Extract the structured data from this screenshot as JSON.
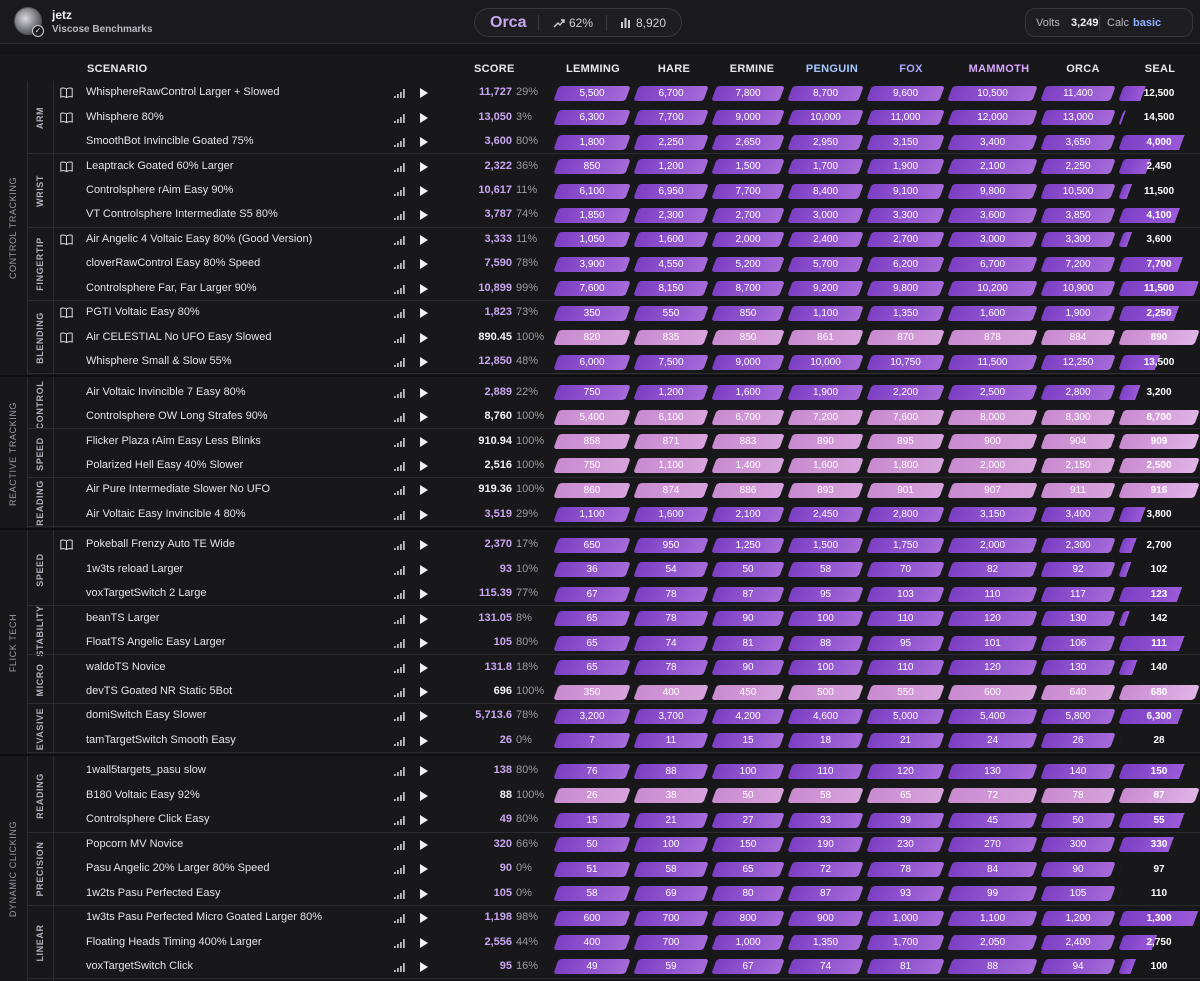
{
  "header": {
    "username": "jetz",
    "benchmark": "Viscose Benchmarks",
    "rank": "Orca",
    "percent": "62%",
    "count": "8,920",
    "volts_label": "Volts",
    "volts_value": "3,249",
    "calc_label": "Calc",
    "calc_value": "basic"
  },
  "columns": {
    "scenario": "SCENARIO",
    "score": "SCORE",
    "ranks": [
      "LEMMING",
      "HARE",
      "ERMINE",
      "PENGUIN",
      "FOX",
      "MAMMOTH",
      "ORCA",
      "SEAL"
    ]
  },
  "colors": {
    "bar_purple": "#7c3fc4",
    "bar_pink": "#c98ad0",
    "accent_text": "#c9a6f0",
    "penguin": "#a6c8ff",
    "fox": "#b0a8ff",
    "mammoth": "#d6a8ff"
  },
  "categories": [
    {
      "name": "CONTROL TRACKING",
      "groups": [
        {
          "name": "ARM",
          "rows": [
            {
              "scenario": "WhisphereRawControl Larger + Slowed",
              "score": "11,727",
              "pct": "29%",
              "book": true,
              "fill": 0.29,
              "thr": [
                "5,500",
                "6,700",
                "7,800",
                "8,700",
                "9,600",
                "10,500",
                "11,400",
                "12,500"
              ]
            },
            {
              "scenario": "Whisphere 80%",
              "score": "13,050",
              "pct": "3%",
              "book": true,
              "fill": 0.03,
              "thr": [
                "6,300",
                "7,700",
                "9,000",
                "10,000",
                "11,000",
                "12,000",
                "13,000",
                "14,500"
              ]
            },
            {
              "scenario": "SmoothBot Invincible Goated 75%",
              "score": "3,600",
              "pct": "80%",
              "book": false,
              "fill": 0.8,
              "thr": [
                "1,800",
                "2,250",
                "2,650",
                "2,950",
                "3,150",
                "3,400",
                "3,650",
                "4,000"
              ]
            }
          ]
        },
        {
          "name": "WRIST",
          "rows": [
            {
              "scenario": "Leaptrack Goated 60% Larger",
              "score": "2,322",
              "pct": "36%",
              "book": true,
              "fill": 0.36,
              "thr": [
                "850",
                "1,200",
                "1,500",
                "1,700",
                "1,900",
                "2,100",
                "2,250",
                "2,450"
              ]
            },
            {
              "scenario": "Controlsphere rAim Easy 90%",
              "score": "10,617",
              "pct": "11%",
              "book": false,
              "fill": 0.11,
              "thr": [
                "6,100",
                "6,950",
                "7,700",
                "8,400",
                "9,100",
                "9,800",
                "10,500",
                "11,500"
              ]
            },
            {
              "scenario": "VT Controlsphere Intermediate S5 80%",
              "score": "3,787",
              "pct": "74%",
              "book": false,
              "fill": 0.74,
              "thr": [
                "1,850",
                "2,300",
                "2,700",
                "3,000",
                "3,300",
                "3,600",
                "3,850",
                "4,100"
              ]
            }
          ]
        },
        {
          "name": "FINGERTIP",
          "rows": [
            {
              "scenario": "Air Angelic 4 Voltaic Easy 80% (Good Version)",
              "score": "3,333",
              "pct": "11%",
              "book": true,
              "fill": 0.11,
              "thr": [
                "1,050",
                "1,600",
                "2,000",
                "2,400",
                "2,700",
                "3,000",
                "3,300",
                "3,600"
              ]
            },
            {
              "scenario": "cloverRawControl Easy 80% Speed",
              "score": "7,590",
              "pct": "78%",
              "book": false,
              "fill": 0.78,
              "thr": [
                "3,900",
                "4,550",
                "5,200",
                "5,700",
                "6,200",
                "6,700",
                "7,200",
                "7,700"
              ]
            },
            {
              "scenario": "Controlsphere Far, Far Larger 90%",
              "score": "10,899",
              "pct": "99%",
              "book": false,
              "fill": 0.99,
              "thr": [
                "7,600",
                "8,150",
                "8,700",
                "9,200",
                "9,800",
                "10,200",
                "10,900",
                "11,500"
              ]
            }
          ]
        },
        {
          "name": "BLENDING",
          "rows": [
            {
              "scenario": "PGTI Voltaic Easy 80%",
              "score": "1,823",
              "pct": "73%",
              "book": true,
              "fill": 0.73,
              "thr": [
                "350",
                "550",
                "850",
                "1,100",
                "1,350",
                "1,600",
                "1,900",
                "2,250"
              ]
            },
            {
              "scenario": "Air CELESTIAL No UFO Easy Slowed",
              "score": "890.45",
              "pct": "100%",
              "book": true,
              "fill": 1.0,
              "thr": [
                "820",
                "835",
                "850",
                "861",
                "870",
                "878",
                "884",
                "890"
              ]
            },
            {
              "scenario": "Whisphere Small & Slow 55%",
              "score": "12,850",
              "pct": "48%",
              "book": false,
              "fill": 0.48,
              "thr": [
                "6,000",
                "7,500",
                "9,000",
                "10,000",
                "10,750",
                "11,500",
                "12,250",
                "13,500"
              ]
            }
          ]
        }
      ]
    },
    {
      "name": "REACTIVE TRACKING",
      "groups": [
        {
          "name": "CONTROL",
          "rows": [
            {
              "scenario": "Air Voltaic Invincible 7 Easy 80%",
              "score": "2,889",
              "pct": "22%",
              "book": false,
              "fill": 0.22,
              "thr": [
                "750",
                "1,200",
                "1,600",
                "1,900",
                "2,200",
                "2,500",
                "2,800",
                "3,200"
              ]
            },
            {
              "scenario": "Controlsphere OW Long Strafes 90%",
              "score": "8,760",
              "pct": "100%",
              "book": false,
              "fill": 1.0,
              "thr": [
                "5,400",
                "6,100",
                "6,700",
                "7,200",
                "7,600",
                "8,000",
                "8,300",
                "8,700"
              ]
            }
          ]
        },
        {
          "name": "SPEED",
          "rows": [
            {
              "scenario": "Flicker Plaza rAim Easy Less Blinks",
              "score": "910.94",
              "pct": "100%",
              "book": false,
              "fill": 1.0,
              "thr": [
                "858",
                "871",
                "883",
                "890",
                "895",
                "900",
                "904",
                "909"
              ]
            },
            {
              "scenario": "Polarized Hell Easy 40% Slower",
              "score": "2,516",
              "pct": "100%",
              "book": false,
              "fill": 1.0,
              "thr": [
                "750",
                "1,100",
                "1,400",
                "1,600",
                "1,800",
                "2,000",
                "2,150",
                "2,500"
              ]
            }
          ]
        },
        {
          "name": "READING",
          "rows": [
            {
              "scenario": "Air Pure Intermediate Slower No UFO",
              "score": "919.36",
              "pct": "100%",
              "book": false,
              "fill": 1.0,
              "thr": [
                "860",
                "874",
                "886",
                "893",
                "901",
                "907",
                "911",
                "916"
              ]
            },
            {
              "scenario": "Air Voltaic Easy Invincible 4 80%",
              "score": "3,519",
              "pct": "29%",
              "book": false,
              "fill": 0.29,
              "thr": [
                "1,100",
                "1,600",
                "2,100",
                "2,450",
                "2,800",
                "3,150",
                "3,400",
                "3,800"
              ]
            }
          ]
        }
      ]
    },
    {
      "name": "FLICK TECH",
      "groups": [
        {
          "name": "SPEED",
          "rows": [
            {
              "scenario": "Pokeball Frenzy Auto TE Wide",
              "score": "2,370",
              "pct": "17%",
              "book": true,
              "fill": 0.17,
              "thr": [
                "650",
                "950",
                "1,250",
                "1,500",
                "1,750",
                "2,000",
                "2,300",
                "2,700"
              ]
            },
            {
              "scenario": "1w3ts reload Larger",
              "score": "93",
              "pct": "10%",
              "book": false,
              "fill": 0.1,
              "thr": [
                "36",
                "54",
                "50",
                "58",
                "70",
                "82",
                "92",
                "102"
              ]
            },
            {
              "scenario": "voxTargetSwitch 2 Large",
              "score": "115.39",
              "pct": "77%",
              "book": false,
              "fill": 0.77,
              "thr": [
                "67",
                "78",
                "87",
                "95",
                "103",
                "110",
                "117",
                "123"
              ]
            }
          ]
        },
        {
          "name": "STABILITY",
          "rows": [
            {
              "scenario": "beanTS Larger",
              "score": "131.05",
              "pct": "8%",
              "book": false,
              "fill": 0.08,
              "thr": [
                "65",
                "78",
                "90",
                "100",
                "110",
                "120",
                "130",
                "142"
              ]
            },
            {
              "scenario": "FloatTS Angelic Easy Larger",
              "score": "105",
              "pct": "80%",
              "book": false,
              "fill": 0.8,
              "thr": [
                "65",
                "74",
                "81",
                "88",
                "95",
                "101",
                "106",
                "111"
              ]
            }
          ]
        },
        {
          "name": "MICRO",
          "rows": [
            {
              "scenario": "waldoTS Novice",
              "score": "131.8",
              "pct": "18%",
              "book": false,
              "fill": 0.18,
              "thr": [
                "65",
                "78",
                "90",
                "100",
                "110",
                "120",
                "130",
                "140"
              ]
            },
            {
              "scenario": "devTS Goated NR Static 5Bot",
              "score": "696",
              "pct": "100%",
              "book": false,
              "fill": 1.0,
              "thr": [
                "350",
                "400",
                "450",
                "500",
                "550",
                "600",
                "640",
                "680"
              ]
            }
          ]
        },
        {
          "name": "EVASIVE",
          "rows": [
            {
              "scenario": "domiSwitch Easy Slower",
              "score": "5,713.6",
              "pct": "78%",
              "book": false,
              "fill": 0.78,
              "thr": [
                "3,200",
                "3,700",
                "4,200",
                "4,600",
                "5,000",
                "5,400",
                "5,800",
                "6,300"
              ]
            },
            {
              "scenario": "tamTargetSwitch Smooth Easy",
              "score": "26",
              "pct": "0%",
              "book": false,
              "fill": 0.0,
              "thr": [
                "7",
                "11",
                "15",
                "18",
                "21",
                "24",
                "26",
                "28"
              ]
            }
          ]
        }
      ]
    },
    {
      "name": "DYNAMIC CLICKING",
      "groups": [
        {
          "name": "READING",
          "rows": [
            {
              "scenario": "1wall5targets_pasu slow",
              "score": "138",
              "pct": "80%",
              "book": false,
              "fill": 0.8,
              "thr": [
                "76",
                "88",
                "100",
                "110",
                "120",
                "130",
                "140",
                "150"
              ]
            },
            {
              "scenario": "B180 Voltaic Easy 92%",
              "score": "88",
              "pct": "100%",
              "book": false,
              "fill": 1.0,
              "thr": [
                "26",
                "38",
                "50",
                "58",
                "65",
                "72",
                "78",
                "87"
              ]
            },
            {
              "scenario": "Controlsphere Click Easy",
              "score": "49",
              "pct": "80%",
              "book": false,
              "fill": 0.8,
              "thr": [
                "15",
                "21",
                "27",
                "33",
                "39",
                "45",
                "50",
                "55"
              ]
            }
          ]
        },
        {
          "name": "PRECISION",
          "rows": [
            {
              "scenario": "Popcorn MV Novice",
              "score": "320",
              "pct": "66%",
              "book": false,
              "fill": 0.66,
              "thr": [
                "50",
                "100",
                "150",
                "190",
                "230",
                "270",
                "300",
                "330"
              ]
            },
            {
              "scenario": "Pasu Angelic 20% Larger 80% Speed",
              "score": "90",
              "pct": "0%",
              "book": false,
              "fill": 0.0,
              "thr": [
                "51",
                "58",
                "65",
                "72",
                "78",
                "84",
                "90",
                "97"
              ]
            },
            {
              "scenario": "1w2ts Pasu Perfected Easy",
              "score": "105",
              "pct": "0%",
              "book": false,
              "fill": 0.0,
              "thr": [
                "58",
                "69",
                "80",
                "87",
                "93",
                "99",
                "105",
                "110"
              ]
            }
          ]
        },
        {
          "name": "LINEAR",
          "rows": [
            {
              "scenario": "1w3ts Pasu Perfected Micro Goated Larger 80%",
              "score": "1,198",
              "pct": "98%",
              "book": false,
              "fill": 0.98,
              "thr": [
                "600",
                "700",
                "800",
                "900",
                "1,000",
                "1,100",
                "1,200",
                "1,300"
              ]
            },
            {
              "scenario": "Floating Heads Timing 400% Larger",
              "score": "2,556",
              "pct": "44%",
              "book": false,
              "fill": 0.44,
              "thr": [
                "400",
                "700",
                "1,000",
                "1,350",
                "1,700",
                "2,050",
                "2,400",
                "2,750"
              ]
            },
            {
              "scenario": "voxTargetSwitch Click",
              "score": "95",
              "pct": "16%",
              "book": false,
              "fill": 0.16,
              "thr": [
                "49",
                "59",
                "67",
                "74",
                "81",
                "88",
                "94",
                "100"
              ]
            }
          ]
        }
      ]
    }
  ]
}
